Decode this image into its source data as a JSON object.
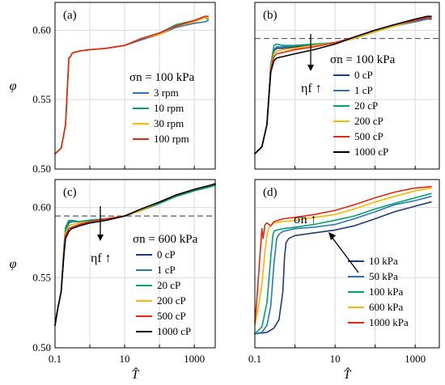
{
  "chart_data": [
    {
      "type": "line",
      "panel_label": "(a)",
      "xlabel": "",
      "ylabel": "φ",
      "xscale": "log",
      "xlim": [
        0.1,
        4000
      ],
      "ylim": [
        0.5,
        0.62
      ],
      "yticks": [
        "0.50",
        "0.55",
        "0.60"
      ],
      "xticks": [],
      "grid": true,
      "legend": {
        "title": "σn = 100 kPa",
        "placement": "middle-right"
      },
      "annotations": [],
      "series": [
        {
          "name": "3 rpm",
          "color": "#2e75b6",
          "x": [
            0.1,
            0.15,
            0.2,
            0.25,
            0.28,
            0.3,
            0.35,
            0.5,
            1,
            3,
            10,
            30,
            100,
            300,
            1000,
            2000,
            2500
          ],
          "y": [
            0.511,
            0.515,
            0.532,
            0.58,
            0.581,
            0.583,
            0.584,
            0.585,
            0.586,
            0.587,
            0.589,
            0.593,
            0.597,
            0.602,
            0.605,
            0.606,
            0.607
          ]
        },
        {
          "name": "10 rpm",
          "color": "#00a36c",
          "x": [
            0.1,
            0.15,
            0.2,
            0.25,
            0.28,
            0.3,
            0.35,
            0.5,
            1,
            3,
            10,
            30,
            100,
            300,
            1000,
            2000,
            2500
          ],
          "y": [
            0.511,
            0.515,
            0.532,
            0.58,
            0.581,
            0.583,
            0.584,
            0.585,
            0.586,
            0.587,
            0.589,
            0.594,
            0.598,
            0.604,
            0.607,
            0.609,
            0.608
          ]
        },
        {
          "name": "30 rpm",
          "color": "#f5b700",
          "x": [
            0.1,
            0.15,
            0.2,
            0.25,
            0.28,
            0.3,
            0.35,
            0.5,
            1,
            3,
            10,
            30,
            100,
            300,
            1000,
            2000,
            2500
          ],
          "y": [
            0.511,
            0.515,
            0.532,
            0.58,
            0.581,
            0.583,
            0.584,
            0.585,
            0.586,
            0.587,
            0.589,
            0.594,
            0.597,
            0.603,
            0.606,
            0.609,
            0.609
          ]
        },
        {
          "name": "100 rpm",
          "color": "#e52613",
          "x": [
            0.1,
            0.15,
            0.2,
            0.25,
            0.28,
            0.3,
            0.35,
            0.5,
            1,
            3,
            10,
            30,
            100,
            300,
            1000,
            2000,
            2500
          ],
          "y": [
            0.511,
            0.515,
            0.532,
            0.58,
            0.581,
            0.583,
            0.584,
            0.585,
            0.586,
            0.587,
            0.589,
            0.594,
            0.598,
            0.603,
            0.607,
            0.61,
            0.61
          ]
        }
      ]
    },
    {
      "type": "line",
      "panel_label": "(b)",
      "xlabel": "",
      "ylabel": "",
      "xscale": "log",
      "xlim": [
        0.1,
        4000
      ],
      "ylim": [
        0.5,
        0.62
      ],
      "yticks": [],
      "xticks": [],
      "grid": true,
      "reference_line_y": 0.594,
      "legend": {
        "title": "σn = 100 kPa",
        "placement": "right"
      },
      "annotations": [
        {
          "text": "ηf ↑",
          "direction": "down"
        }
      ],
      "series": [
        {
          "name": "0 cP",
          "color": "#1f3b73",
          "x": [
            0.1,
            0.15,
            0.2,
            0.25,
            0.3,
            0.35,
            0.5,
            1,
            3,
            10,
            30,
            100,
            300,
            1000,
            2000,
            2500
          ],
          "y": [
            0.511,
            0.516,
            0.532,
            0.575,
            0.585,
            0.587,
            0.587,
            0.588,
            0.589,
            0.591,
            0.594,
            0.599,
            0.603,
            0.607,
            0.608,
            0.608
          ]
        },
        {
          "name": "1 cP",
          "color": "#2e75b6",
          "x": [
            0.1,
            0.15,
            0.2,
            0.25,
            0.3,
            0.35,
            0.5,
            1,
            3,
            10,
            30,
            100,
            300,
            1000,
            2000,
            2500
          ],
          "y": [
            0.511,
            0.516,
            0.532,
            0.574,
            0.586,
            0.588,
            0.588,
            0.589,
            0.59,
            0.591,
            0.594,
            0.599,
            0.603,
            0.606,
            0.608,
            0.609
          ]
        },
        {
          "name": "20 cP",
          "color": "#00a36c",
          "x": [
            0.1,
            0.15,
            0.2,
            0.25,
            0.3,
            0.35,
            0.5,
            1,
            3,
            10,
            30,
            100,
            300,
            1000,
            2000,
            2500
          ],
          "y": [
            0.511,
            0.516,
            0.532,
            0.575,
            0.589,
            0.59,
            0.589,
            0.589,
            0.59,
            0.591,
            0.594,
            0.599,
            0.603,
            0.607,
            0.609,
            0.609
          ]
        },
        {
          "name": "200 cP",
          "color": "#f5b700",
          "x": [
            0.1,
            0.15,
            0.2,
            0.25,
            0.3,
            0.35,
            0.5,
            1,
            3,
            10,
            30,
            100,
            300,
            1000,
            2000,
            2500
          ],
          "y": [
            0.511,
            0.516,
            0.532,
            0.573,
            0.583,
            0.585,
            0.586,
            0.587,
            0.589,
            0.591,
            0.594,
            0.599,
            0.603,
            0.607,
            0.609,
            0.609
          ]
        },
        {
          "name": "500 cP",
          "color": "#e52613",
          "x": [
            0.1,
            0.15,
            0.2,
            0.25,
            0.3,
            0.35,
            0.5,
            1,
            3,
            10,
            30,
            100,
            300,
            1000,
            2000,
            2500
          ],
          "y": [
            0.511,
            0.516,
            0.532,
            0.572,
            0.581,
            0.583,
            0.584,
            0.586,
            0.588,
            0.591,
            0.595,
            0.6,
            0.604,
            0.607,
            0.609,
            0.609
          ]
        },
        {
          "name": "1000 cP",
          "color": "#000000",
          "x": [
            0.1,
            0.15,
            0.2,
            0.25,
            0.3,
            0.35,
            0.5,
            1,
            3,
            10,
            30,
            100,
            300,
            1000,
            2000,
            2500
          ],
          "y": [
            0.511,
            0.516,
            0.532,
            0.57,
            0.578,
            0.58,
            0.581,
            0.583,
            0.586,
            0.59,
            0.595,
            0.6,
            0.604,
            0.608,
            0.61,
            0.61
          ]
        }
      ]
    },
    {
      "type": "line",
      "panel_label": "(c)",
      "xlabel": "T̂",
      "ylabel": "φ",
      "xscale": "log",
      "xlim": [
        0.1,
        4000
      ],
      "ylim": [
        0.5,
        0.62
      ],
      "yticks": [
        "0.50",
        "0.55",
        "0.60"
      ],
      "xticks": [
        "0.1",
        "10",
        "1000"
      ],
      "grid": true,
      "reference_line_y": 0.594,
      "legend": {
        "title": "σn = 600 kPa",
        "placement": "right"
      },
      "annotations": [
        {
          "text": "ηf ↑",
          "direction": "down"
        }
      ],
      "series": [
        {
          "name": "0 cP",
          "color": "#1f3b73",
          "x": [
            0.1,
            0.12,
            0.15,
            0.18,
            0.2,
            0.25,
            0.3,
            0.5,
            1,
            3,
            10,
            30,
            100,
            300,
            1000,
            3000,
            4000
          ],
          "y": [
            0.516,
            0.528,
            0.54,
            0.57,
            0.583,
            0.589,
            0.59,
            0.59,
            0.591,
            0.592,
            0.594,
            0.598,
            0.603,
            0.608,
            0.612,
            0.615,
            0.616
          ]
        },
        {
          "name": "1 cP",
          "color": "#2e75b6",
          "x": [
            0.1,
            0.12,
            0.15,
            0.18,
            0.2,
            0.25,
            0.3,
            0.5,
            1,
            3,
            10,
            30,
            100,
            300,
            1000,
            3000,
            4000
          ],
          "y": [
            0.516,
            0.528,
            0.54,
            0.571,
            0.584,
            0.59,
            0.591,
            0.59,
            0.591,
            0.592,
            0.594,
            0.598,
            0.603,
            0.608,
            0.612,
            0.615,
            0.616
          ]
        },
        {
          "name": "20 cP",
          "color": "#00a36c",
          "x": [
            0.1,
            0.12,
            0.15,
            0.18,
            0.2,
            0.25,
            0.3,
            0.5,
            1,
            3,
            10,
            30,
            100,
            300,
            1000,
            3000,
            4000
          ],
          "y": [
            0.516,
            0.528,
            0.54,
            0.572,
            0.586,
            0.591,
            0.59,
            0.59,
            0.591,
            0.592,
            0.594,
            0.598,
            0.603,
            0.608,
            0.612,
            0.615,
            0.616
          ]
        },
        {
          "name": "200 cP",
          "color": "#f5b700",
          "x": [
            0.1,
            0.12,
            0.15,
            0.18,
            0.2,
            0.25,
            0.3,
            0.5,
            1,
            3,
            10,
            30,
            100,
            300,
            1000,
            3000,
            4000
          ],
          "y": [
            0.516,
            0.528,
            0.54,
            0.569,
            0.582,
            0.587,
            0.588,
            0.589,
            0.59,
            0.592,
            0.594,
            0.598,
            0.604,
            0.609,
            0.613,
            0.616,
            0.617
          ]
        },
        {
          "name": "500 cP",
          "color": "#e52613",
          "x": [
            0.1,
            0.12,
            0.15,
            0.18,
            0.2,
            0.25,
            0.3,
            0.5,
            1,
            3,
            10,
            30,
            100,
            300,
            1000,
            3000,
            4000
          ],
          "y": [
            0.516,
            0.528,
            0.54,
            0.568,
            0.58,
            0.585,
            0.586,
            0.588,
            0.59,
            0.592,
            0.594,
            0.599,
            0.604,
            0.609,
            0.613,
            0.616,
            0.617
          ]
        },
        {
          "name": "1000 cP",
          "color": "#000000",
          "x": [
            0.1,
            0.12,
            0.15,
            0.18,
            0.2,
            0.25,
            0.3,
            0.5,
            1,
            3,
            10,
            30,
            100,
            300,
            1000,
            3000,
            4000
          ],
          "y": [
            0.516,
            0.528,
            0.54,
            0.566,
            0.578,
            0.583,
            0.585,
            0.587,
            0.589,
            0.591,
            0.594,
            0.599,
            0.604,
            0.609,
            0.613,
            0.616,
            0.617
          ]
        }
      ]
    },
    {
      "type": "line",
      "panel_label": "(d)",
      "xlabel": "T̂",
      "ylabel": "",
      "xscale": "log",
      "xlim": [
        0.1,
        4000
      ],
      "ylim": [
        0.5,
        0.62
      ],
      "yticks": [],
      "xticks": [
        "0.1",
        "10",
        "1000"
      ],
      "grid": true,
      "legend": {
        "title": "",
        "placement": "lower-right"
      },
      "annotations": [
        {
          "text": "σn ↑",
          "direction": "up-left"
        }
      ],
      "series": [
        {
          "name": "10 kPa",
          "color": "#1f3b73",
          "x": [
            0.1,
            0.2,
            0.3,
            0.4,
            0.5,
            0.55,
            0.6,
            0.7,
            1,
            3,
            10,
            30,
            100,
            300,
            1000,
            2500
          ],
          "y": [
            0.51,
            0.511,
            0.514,
            0.52,
            0.54,
            0.565,
            0.575,
            0.578,
            0.58,
            0.582,
            0.584,
            0.587,
            0.592,
            0.597,
            0.601,
            0.604
          ]
        },
        {
          "name": "50 kPa",
          "color": "#2e75b6",
          "x": [
            0.1,
            0.15,
            0.2,
            0.25,
            0.3,
            0.35,
            0.4,
            0.5,
            1,
            3,
            10,
            30,
            100,
            300,
            1000,
            2500
          ],
          "y": [
            0.51,
            0.511,
            0.516,
            0.53,
            0.56,
            0.578,
            0.581,
            0.583,
            0.585,
            0.586,
            0.588,
            0.592,
            0.597,
            0.602,
            0.605,
            0.608
          ]
        },
        {
          "name": "100 kPa",
          "color": "#00a36c",
          "x": [
            0.1,
            0.15,
            0.2,
            0.25,
            0.28,
            0.3,
            0.35,
            0.5,
            1,
            3,
            10,
            30,
            100,
            300,
            1000,
            2500
          ],
          "y": [
            0.51,
            0.515,
            0.532,
            0.565,
            0.58,
            0.583,
            0.584,
            0.585,
            0.586,
            0.588,
            0.591,
            0.594,
            0.599,
            0.603,
            0.607,
            0.61
          ]
        },
        {
          "name": "600 kPa",
          "color": "#f5b700",
          "x": [
            0.1,
            0.12,
            0.15,
            0.18,
            0.2,
            0.22,
            0.25,
            0.3,
            0.5,
            1,
            3,
            10,
            30,
            100,
            300,
            1000,
            2500
          ],
          "y": [
            0.516,
            0.528,
            0.545,
            0.57,
            0.58,
            0.585,
            0.587,
            0.589,
            0.59,
            0.591,
            0.593,
            0.595,
            0.599,
            0.604,
            0.608,
            0.612,
            0.614
          ]
        },
        {
          "name": "1000 kPa",
          "color": "#e52613",
          "x": [
            0.1,
            0.11,
            0.13,
            0.15,
            0.16,
            0.18,
            0.2,
            0.25,
            0.3,
            0.5,
            1,
            3,
            10,
            30,
            100,
            300,
            1000,
            2500
          ],
          "y": [
            0.518,
            0.532,
            0.56,
            0.585,
            0.578,
            0.588,
            0.589,
            0.587,
            0.59,
            0.592,
            0.593,
            0.595,
            0.598,
            0.602,
            0.607,
            0.611,
            0.614,
            0.615
          ]
        }
      ]
    }
  ]
}
